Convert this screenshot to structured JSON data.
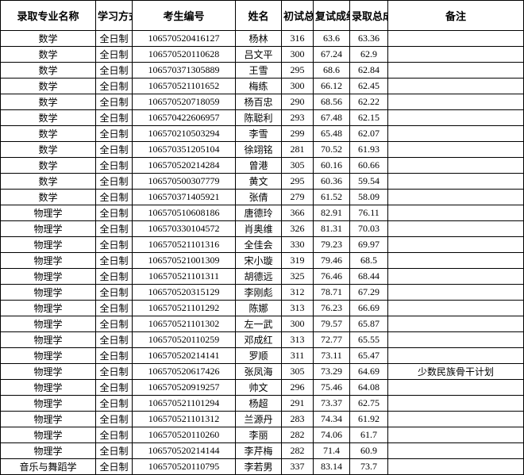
{
  "table": {
    "headers": {
      "major": "录取专业名称",
      "mode": "学习方式",
      "id": "考生编号",
      "name": "姓名",
      "s1": "初试总分",
      "s2": "复试成绩",
      "total": "录取总成绩",
      "note": "备注"
    },
    "rows": [
      {
        "major": "数学",
        "mode": "全日制",
        "id": "106570520416127",
        "name": "杨林",
        "s1": "316",
        "s2": "63.6",
        "total": "63.36",
        "note": ""
      },
      {
        "major": "数学",
        "mode": "全日制",
        "id": "106570520110628",
        "name": "吕文平",
        "s1": "300",
        "s2": "67.24",
        "total": "62.9",
        "note": ""
      },
      {
        "major": "数学",
        "mode": "全日制",
        "id": "106570371305889",
        "name": "王雪",
        "s1": "295",
        "s2": "68.6",
        "total": "62.84",
        "note": ""
      },
      {
        "major": "数学",
        "mode": "全日制",
        "id": "106570521101652",
        "name": "梅练",
        "s1": "300",
        "s2": "66.12",
        "total": "62.45",
        "note": ""
      },
      {
        "major": "数学",
        "mode": "全日制",
        "id": "106570520718059",
        "name": "杨百忠",
        "s1": "290",
        "s2": "68.56",
        "total": "62.22",
        "note": ""
      },
      {
        "major": "数学",
        "mode": "全日制",
        "id": "106570422606957",
        "name": "陈聪利",
        "s1": "293",
        "s2": "67.48",
        "total": "62.15",
        "note": ""
      },
      {
        "major": "数学",
        "mode": "全日制",
        "id": "106570210503294",
        "name": "李雪",
        "s1": "299",
        "s2": "65.48",
        "total": "62.07",
        "note": ""
      },
      {
        "major": "数学",
        "mode": "全日制",
        "id": "106570351205104",
        "name": "徐翊铭",
        "s1": "281",
        "s2": "70.52",
        "total": "61.93",
        "note": ""
      },
      {
        "major": "数学",
        "mode": "全日制",
        "id": "106570520214284",
        "name": "曾港",
        "s1": "305",
        "s2": "60.16",
        "total": "60.66",
        "note": ""
      },
      {
        "major": "数学",
        "mode": "全日制",
        "id": "106570500307779",
        "name": "黄文",
        "s1": "295",
        "s2": "60.36",
        "total": "59.54",
        "note": ""
      },
      {
        "major": "数学",
        "mode": "全日制",
        "id": "106570371405921",
        "name": "张倩",
        "s1": "279",
        "s2": "61.52",
        "total": "58.09",
        "note": ""
      },
      {
        "major": "物理学",
        "mode": "全日制",
        "id": "106570510608186",
        "name": "唐德玲",
        "s1": "366",
        "s2": "82.91",
        "total": "76.11",
        "note": ""
      },
      {
        "major": "物理学",
        "mode": "全日制",
        "id": "106570330104572",
        "name": "肖奥维",
        "s1": "326",
        "s2": "81.31",
        "total": "70.03",
        "note": ""
      },
      {
        "major": "物理学",
        "mode": "全日制",
        "id": "106570521101316",
        "name": "全佳会",
        "s1": "330",
        "s2": "79.23",
        "total": "69.97",
        "note": ""
      },
      {
        "major": "物理学",
        "mode": "全日制",
        "id": "106570521001309",
        "name": "宋小璇",
        "s1": "319",
        "s2": "79.46",
        "total": "68.5",
        "note": ""
      },
      {
        "major": "物理学",
        "mode": "全日制",
        "id": "106570521101311",
        "name": "胡德远",
        "s1": "325",
        "s2": "76.46",
        "total": "68.44",
        "note": ""
      },
      {
        "major": "物理学",
        "mode": "全日制",
        "id": "106570520315129",
        "name": "李刚彪",
        "s1": "312",
        "s2": "78.71",
        "total": "67.29",
        "note": ""
      },
      {
        "major": "物理学",
        "mode": "全日制",
        "id": "106570521101292",
        "name": "陈娜",
        "s1": "313",
        "s2": "76.23",
        "total": "66.69",
        "note": ""
      },
      {
        "major": "物理学",
        "mode": "全日制",
        "id": "106570521101302",
        "name": "左一武",
        "s1": "300",
        "s2": "79.57",
        "total": "65.87",
        "note": ""
      },
      {
        "major": "物理学",
        "mode": "全日制",
        "id": "106570520110259",
        "name": "邓成红",
        "s1": "313",
        "s2": "72.77",
        "total": "65.55",
        "note": ""
      },
      {
        "major": "物理学",
        "mode": "全日制",
        "id": "106570520214141",
        "name": "罗顺",
        "s1": "311",
        "s2": "73.11",
        "total": "65.47",
        "note": ""
      },
      {
        "major": "物理学",
        "mode": "全日制",
        "id": "106570520617426",
        "name": "张凤海",
        "s1": "305",
        "s2": "73.29",
        "total": "64.69",
        "note": "少数民族骨干计划"
      },
      {
        "major": "物理学",
        "mode": "全日制",
        "id": "106570520919257",
        "name": "帅文",
        "s1": "296",
        "s2": "75.46",
        "total": "64.08",
        "note": ""
      },
      {
        "major": "物理学",
        "mode": "全日制",
        "id": "106570521101294",
        "name": "杨超",
        "s1": "291",
        "s2": "73.37",
        "total": "62.75",
        "note": ""
      },
      {
        "major": "物理学",
        "mode": "全日制",
        "id": "106570521101312",
        "name": "兰源丹",
        "s1": "283",
        "s2": "74.34",
        "total": "61.92",
        "note": ""
      },
      {
        "major": "物理学",
        "mode": "全日制",
        "id": "106570520110260",
        "name": "李丽",
        "s1": "282",
        "s2": "74.06",
        "total": "61.7",
        "note": ""
      },
      {
        "major": "物理学",
        "mode": "全日制",
        "id": "106570520214144",
        "name": "李芹梅",
        "s1": "282",
        "s2": "71.4",
        "total": "60.9",
        "note": ""
      },
      {
        "major": "音乐与舞蹈学",
        "mode": "全日制",
        "id": "106570520110795",
        "name": "李若男",
        "s1": "337",
        "s2": "83.14",
        "total": "73.7",
        "note": ""
      }
    ]
  },
  "styles": {
    "border_color": "#000000",
    "background_color": "#ffffff",
    "font_family": "SimSun",
    "header_font_size": 13,
    "cell_font_size": 12,
    "watermark_color": "rgba(100,150,220,0.5)"
  }
}
